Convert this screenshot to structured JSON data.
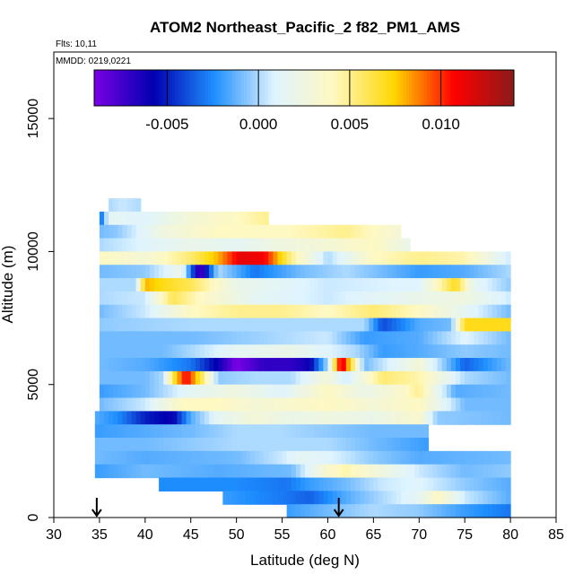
{
  "chart_data": {
    "type": "heatmap",
    "title": "ATOM2 Northeast_Pacific_2 f82_PM1_AMS",
    "notes": [
      "Flts: 10,11",
      "MMDD: 0219,0221"
    ],
    "xlabel": "Latitude (deg N)",
    "ylabel": "Altitude (m)",
    "xlim": [
      30,
      85
    ],
    "ylim": [
      0,
      17500
    ],
    "x_ticks": [
      30,
      35,
      40,
      45,
      50,
      55,
      60,
      65,
      70,
      75,
      80,
      85
    ],
    "y_ticks": [
      0,
      5000,
      10000,
      15000
    ],
    "colorbar": {
      "range": [
        -0.009,
        0.014
      ],
      "ticks": [
        -0.005,
        0.0,
        0.005,
        0.01
      ],
      "tick_labels": [
        "-0.005",
        "0.000",
        "0.005",
        "0.010"
      ],
      "colors": [
        "#7a00e6",
        "#0000b0",
        "#1e8fff",
        "#dff4ff",
        "#fff8c0",
        "#ffd700",
        "#ff0000",
        "#8b1a1a"
      ]
    },
    "markers": [
      {
        "lat": 34.7,
        "alt": 0
      },
      {
        "lat": 61.2,
        "alt": 0
      }
    ],
    "rows": [
      {
        "alt_min": 11500,
        "alt_max": 12000,
        "lat_min": 36.0,
        "lat_max": 39.5,
        "lats": [
          36.0,
          37.5,
          39.5
        ],
        "values": [
          0.0,
          0.0005,
          0.0
        ]
      },
      {
        "alt_min": 11000,
        "alt_max": 11500,
        "lat_min": 35.0,
        "lat_max": 53.5,
        "lats": [
          35.0,
          36.0,
          40.0,
          45.0,
          50.0,
          53.5
        ],
        "values": [
          -0.004,
          0.0015,
          0.001,
          0.003,
          0.004,
          0.005
        ]
      },
      {
        "alt_min": 10500,
        "alt_max": 11000,
        "lat_min": 35.0,
        "lat_max": 68.0,
        "lats": [
          35.0,
          37.0,
          42.0,
          48.0,
          55.0,
          62.0,
          68.0
        ],
        "values": [
          -0.001,
          -0.0005,
          0.0025,
          0.004,
          0.004,
          0.005,
          0.003
        ]
      },
      {
        "alt_min": 10000,
        "alt_max": 10500,
        "lat_min": 35.0,
        "lat_max": 69.0,
        "lats": [
          35.0,
          40.0,
          45.0,
          50.0,
          55.0,
          60.0,
          65.0,
          69.0
        ],
        "values": [
          0.0,
          0.001,
          0.002,
          0.0015,
          0.0025,
          0.003,
          0.004,
          0.002
        ]
      },
      {
        "alt_min": 9500,
        "alt_max": 10000,
        "lat_min": 35.0,
        "lat_max": 80.0,
        "lats": [
          35.0,
          40.0,
          45.0,
          48.0,
          50.5,
          53.0,
          56.0,
          60.0,
          65.0,
          70.0,
          75.0,
          80.0
        ],
        "values": [
          0.004,
          0.003,
          0.0055,
          0.008,
          0.0115,
          0.011,
          0.005,
          0.0,
          0.004,
          0.005,
          0.0045,
          0.0005
        ]
      },
      {
        "alt_min": 9000,
        "alt_max": 9500,
        "lat_min": 35.0,
        "lat_max": 80.0,
        "lats": [
          35.0,
          40.0,
          44.0,
          46.0,
          48.0,
          52.0,
          57.0,
          62.0,
          70.0,
          75.0,
          80.0
        ],
        "values": [
          -0.001,
          -0.0005,
          0.002,
          -0.008,
          0.0,
          -0.003,
          -0.001,
          0.0,
          -0.002,
          -0.0015,
          0.0
        ]
      },
      {
        "alt_min": 8500,
        "alt_max": 9000,
        "lat_min": 35.0,
        "lat_max": 80.0,
        "lats": [
          35.0,
          39.0,
          40.0,
          42.0,
          45.0,
          50.0,
          60.0,
          70.0,
          74.0,
          76.0,
          80.0
        ],
        "values": [
          0.0,
          0.0,
          0.008,
          0.007,
          0.006,
          0.002,
          0.0005,
          0.001,
          0.007,
          0.0015,
          -0.0005
        ]
      },
      {
        "alt_min": 8000,
        "alt_max": 8500,
        "lat_min": 35.0,
        "lat_max": 80.0,
        "lats": [
          35.0,
          40.0,
          43.0,
          46.0,
          52.0,
          60.0,
          70.0,
          75.0,
          80.0
        ],
        "values": [
          0.0,
          0.0005,
          0.006,
          0.004,
          0.0015,
          0.0005,
          0.002,
          0.0025,
          0.0005
        ]
      },
      {
        "alt_min": 7500,
        "alt_max": 8000,
        "lat_min": 35.0,
        "lat_max": 80.0,
        "lats": [
          35.0,
          40.0,
          45.0,
          50.0,
          55.0,
          60.0,
          65.0,
          70.0,
          75.0,
          80.0
        ],
        "values": [
          -0.001,
          0.0005,
          0.004,
          0.005,
          0.005,
          0.004,
          0.0055,
          0.004,
          0.0015,
          -0.001
        ]
      },
      {
        "alt_min": 7000,
        "alt_max": 7500,
        "lat_min": 35.0,
        "lat_max": 80.0,
        "lats": [
          35.0,
          45.0,
          60.0,
          64.0,
          66.0,
          70.0,
          73.5,
          75.0,
          80.0
        ],
        "values": [
          -0.0005,
          0.0,
          0.0,
          0.0,
          -0.004,
          -0.0015,
          -0.001,
          0.007,
          0.007
        ]
      },
      {
        "alt_min": 6500,
        "alt_max": 7000,
        "lat_min": 35.0,
        "lat_max": 80.0,
        "lats": [
          35.0,
          45.0,
          55.0,
          60.0,
          64.0,
          70.0,
          75.0,
          80.0
        ],
        "values": [
          -0.001,
          -0.001,
          0.0,
          0.0005,
          -0.002,
          -0.0015,
          0.001,
          -0.001
        ]
      },
      {
        "alt_min": 6000,
        "alt_max": 6500,
        "lat_min": 35.0,
        "lat_max": 80.0,
        "lats": [
          35.0,
          42.0,
          50.0,
          56.0,
          60.0,
          63.0,
          66.0,
          70.0,
          75.0,
          80.0
        ],
        "values": [
          -0.001,
          -0.001,
          0.0015,
          0.002,
          0.001,
          0.0,
          -0.002,
          -0.0015,
          -0.0005,
          -0.001
        ]
      },
      {
        "alt_min": 5500,
        "alt_max": 6000,
        "lat_min": 35.0,
        "lat_max": 80.0,
        "lats": [
          35.0,
          40.0,
          45.0,
          48.0,
          50.0,
          53.0,
          56.0,
          58.0,
          60.0,
          61.5,
          64.0,
          70.0,
          75.0,
          80.0
        ],
        "values": [
          -0.001,
          -0.0015,
          -0.003,
          -0.006,
          -0.009,
          -0.007,
          -0.007,
          -0.006,
          0.0,
          0.012,
          -0.001,
          0.003,
          -0.0035,
          -0.001
        ]
      },
      {
        "alt_min": 5000,
        "alt_max": 5500,
        "lat_min": 35.0,
        "lat_max": 80.0,
        "lats": [
          35.0,
          40.0,
          42.0,
          43.0,
          44.5,
          46.5,
          48.0,
          52.0,
          56.0,
          60.0,
          62.0,
          66.0,
          70.0,
          75.0,
          80.0
        ],
        "values": [
          -0.001,
          -0.001,
          0.0,
          0.006,
          0.011,
          0.005,
          -0.0005,
          0.0,
          0.0,
          0.003,
          0.0005,
          0.0055,
          0.0045,
          0.0,
          -0.001
        ]
      },
      {
        "alt_min": 4500,
        "alt_max": 5000,
        "lat_min": 35.0,
        "lat_max": 80.0,
        "lats": [
          35.0,
          40.0,
          45.0,
          50.0,
          55.0,
          60.0,
          64.0,
          68.0,
          70.0,
          74.0,
          80.0
        ],
        "values": [
          -0.002,
          -0.001,
          0.0015,
          0.0025,
          0.001,
          0.004,
          0.002,
          0.0035,
          0.005,
          -0.0015,
          -0.001
        ]
      },
      {
        "alt_min": 4000,
        "alt_max": 4500,
        "lat_min": 35.0,
        "lat_max": 80.0,
        "lats": [
          35.0,
          40.0,
          44.0,
          48.0,
          52.0,
          56.0,
          60.0,
          65.0,
          70.0,
          75.0,
          80.0
        ],
        "values": [
          -0.001,
          0.0005,
          0.004,
          0.004,
          0.003,
          0.0035,
          0.004,
          0.003,
          0.004,
          -0.001,
          -0.001
        ]
      },
      {
        "alt_min": 3500,
        "alt_max": 4000,
        "lat_min": 34.5,
        "lat_max": 80.0,
        "lats": [
          34.5,
          37.0,
          40.0,
          43.0,
          45.0,
          48.0,
          52.0,
          56.0,
          60.0,
          65.0,
          70.0,
          72.0,
          80.0
        ],
        "values": [
          -0.0015,
          -0.0025,
          -0.005,
          -0.006,
          -0.0015,
          0.0015,
          0.003,
          0.002,
          0.0025,
          0.002,
          0.0035,
          -0.0005,
          -0.001
        ]
      },
      {
        "alt_min": 3000,
        "alt_max": 3500,
        "lat_min": 34.5,
        "lat_max": 71.0,
        "lats": [
          34.5,
          40.0,
          45.0,
          50.0,
          55.0,
          60.0,
          65.0,
          71.0
        ],
        "values": [
          -0.002,
          -0.0015,
          -0.001,
          0.0,
          0.0,
          -0.0005,
          -0.001,
          -0.001
        ]
      },
      {
        "alt_min": 2500,
        "alt_max": 3000,
        "lat_min": 34.5,
        "lat_max": 71.0,
        "lats": [
          34.5,
          40.0,
          45.0,
          50.0,
          55.0,
          60.0,
          65.0,
          71.0
        ],
        "values": [
          -0.001,
          -0.001,
          -0.0005,
          0.0,
          0.0,
          0.0,
          -0.001,
          -0.002
        ]
      },
      {
        "alt_min": 2000,
        "alt_max": 2500,
        "lat_min": 34.5,
        "lat_max": 80.0,
        "lats": [
          34.5,
          40.0,
          50.0,
          55.0,
          57.0,
          60.0,
          65.0,
          70.0,
          80.0
        ],
        "values": [
          -0.001,
          -0.0015,
          -0.001,
          0.0005,
          0.0015,
          0.001,
          -0.0005,
          -0.0015,
          -0.001
        ]
      },
      {
        "alt_min": 1500,
        "alt_max": 2000,
        "lat_min": 34.5,
        "lat_max": 80.0,
        "lats": [
          34.5,
          40.0,
          48.0,
          56.0,
          60.0,
          62.0,
          65.0,
          70.0,
          75.0,
          80.0
        ],
        "values": [
          -0.002,
          -0.001,
          -0.0015,
          -0.001,
          0.0035,
          0.0045,
          0.003,
          0.0005,
          -0.001,
          -0.0005
        ]
      },
      {
        "alt_min": 1000,
        "alt_max": 1500,
        "lat_min": 41.5,
        "lat_max": 80.0,
        "lats": [
          41.5,
          50.0,
          55.5,
          58.0,
          62.0,
          66.0,
          70.0,
          75.0,
          80.0
        ],
        "values": [
          -0.0025,
          -0.0025,
          -0.003,
          -0.002,
          -0.001,
          0.0005,
          0.001,
          -0.0005,
          -0.0015
        ]
      },
      {
        "alt_min": 500,
        "alt_max": 1000,
        "lat_min": 48.5,
        "lat_max": 80.0,
        "lats": [
          48.5,
          52.0,
          55.5,
          58.0,
          62.0,
          66.0,
          70.0,
          72.0,
          75.0,
          80.0
        ],
        "values": [
          -0.002,
          -0.0025,
          -0.003,
          -0.0035,
          -0.0015,
          0.0,
          0.0015,
          0.004,
          0.0005,
          -0.0015
        ]
      },
      {
        "alt_min": 0,
        "alt_max": 500,
        "lat_min": 55.5,
        "lat_max": 80.0,
        "lats": [
          55.5,
          60.0,
          65.0,
          70.0,
          75.0,
          80.0
        ],
        "values": [
          -0.002,
          -0.001,
          0.0,
          -0.0005,
          -0.002,
          -0.003
        ]
      }
    ]
  }
}
